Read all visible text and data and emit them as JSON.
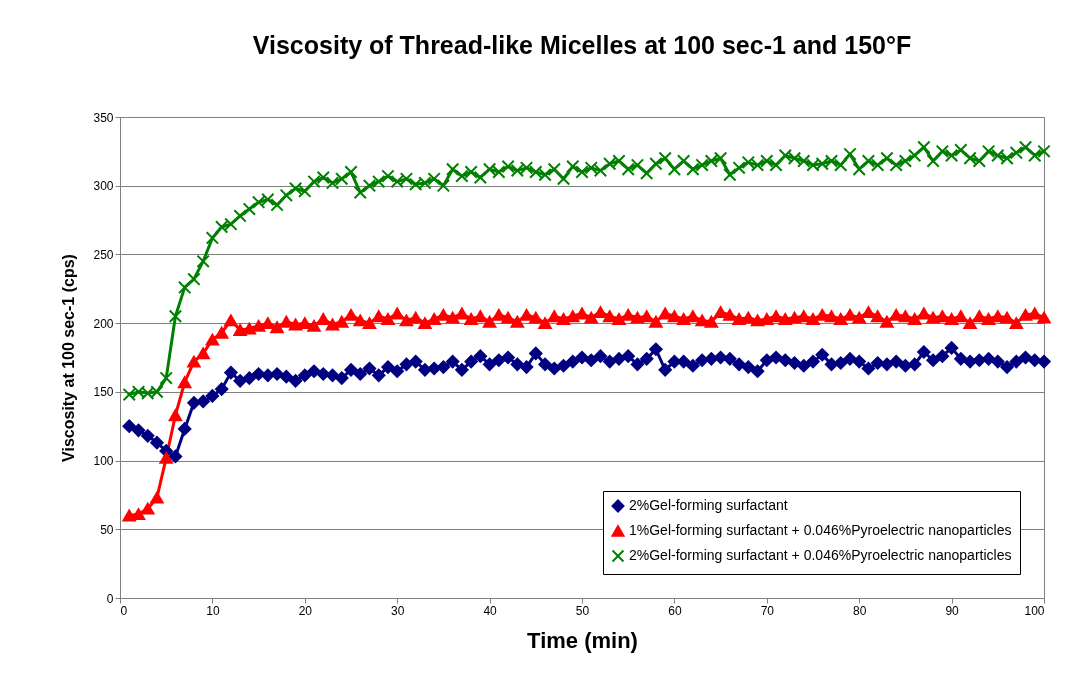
{
  "chart_data": {
    "type": "line",
    "title": "Viscosity of Thread-like Micelles at 100 sec-1 and 150°F",
    "xlabel": "Time (min)",
    "ylabel": "Viscosity at 100 sec-1 (cps)",
    "x": [
      1,
      2,
      3,
      4,
      5,
      6,
      7,
      8,
      9,
      10,
      11,
      12,
      13,
      14,
      15,
      16,
      17,
      18,
      19,
      20,
      21,
      22,
      23,
      24,
      25,
      26,
      27,
      28,
      29,
      30,
      31,
      32,
      33,
      34,
      35,
      36,
      37,
      38,
      39,
      40,
      41,
      42,
      43,
      44,
      45,
      46,
      47,
      48,
      49,
      50,
      51,
      52,
      53,
      54,
      55,
      56,
      57,
      58,
      59,
      60,
      61,
      62,
      63,
      64,
      65,
      66,
      67,
      68,
      69,
      70,
      71,
      72,
      73,
      74,
      75,
      76,
      77,
      78,
      79,
      80,
      81,
      82,
      83,
      84,
      85,
      86,
      87,
      88,
      89,
      90,
      91,
      92,
      93,
      94,
      95,
      96,
      97,
      98,
      99,
      100
    ],
    "series": [
      {
        "name": "2%Gel-forming surfactant",
        "color": "#000080",
        "marker": "diamond",
        "values": [
          125,
          122,
          118,
          113,
          107,
          103,
          123,
          142,
          143,
          147,
          152,
          164,
          158,
          160,
          163,
          162,
          163,
          161,
          158,
          162,
          165,
          163,
          162,
          160,
          166,
          163,
          167,
          162,
          168,
          165,
          170,
          172,
          166,
          167,
          168,
          172,
          166,
          172,
          176,
          170,
          173,
          175,
          170,
          168,
          178,
          170,
          167,
          169,
          172,
          175,
          173,
          176,
          172,
          174,
          176,
          170,
          174,
          181,
          166,
          172,
          172,
          169,
          173,
          174,
          175,
          174,
          170,
          168,
          165,
          173,
          175,
          173,
          171,
          169,
          172,
          177,
          170,
          171,
          174,
          172,
          167,
          171,
          170,
          172,
          169,
          170,
          179,
          173,
          176,
          182,
          174,
          172,
          173,
          174,
          172,
          168,
          172,
          175,
          173,
          172
        ]
      },
      {
        "name": "1%Gel-forming surfactant + 0.046%Pyroelectric nanoparticles",
        "color": "#ff0000",
        "marker": "triangle",
        "values": [
          60,
          61,
          65,
          73,
          102,
          133,
          157,
          172,
          178,
          188,
          193,
          202,
          195,
          196,
          198,
          200,
          197,
          201,
          199,
          200,
          198,
          203,
          199,
          201,
          206,
          202,
          200,
          205,
          203,
          207,
          202,
          204,
          200,
          203,
          206,
          204,
          207,
          203,
          205,
          201,
          206,
          204,
          201,
          206,
          204,
          200,
          205,
          203,
          205,
          207,
          204,
          208,
          205,
          203,
          206,
          204,
          205,
          201,
          207,
          205,
          203,
          205,
          202,
          201,
          208,
          206,
          203,
          204,
          202,
          203,
          205,
          203,
          204,
          205,
          203,
          206,
          205,
          203,
          206,
          204,
          208,
          205,
          201,
          206,
          205,
          203,
          207,
          204,
          205,
          203,
          205,
          200,
          205,
          203,
          205,
          204,
          200,
          206,
          207,
          204
        ]
      },
      {
        "name": "2%Gel-forming surfactant + 0.046%Pyroelectric nanoparticles",
        "color": "#008000",
        "marker": "cross",
        "values": [
          148,
          150,
          149,
          150,
          160,
          205,
          226,
          232,
          245,
          262,
          270,
          272,
          278,
          283,
          288,
          290,
          286,
          293,
          298,
          296,
          303,
          306,
          302,
          305,
          310,
          295,
          300,
          303,
          307,
          303,
          305,
          301,
          302,
          305,
          300,
          312,
          307,
          310,
          306,
          312,
          310,
          314,
          311,
          313,
          310,
          308,
          312,
          305,
          314,
          310,
          313,
          311,
          316,
          318,
          312,
          315,
          309,
          316,
          320,
          312,
          318,
          312,
          315,
          318,
          320,
          308,
          313,
          317,
          315,
          318,
          315,
          322,
          320,
          318,
          315,
          316,
          318,
          315,
          323,
          312,
          318,
          315,
          320,
          315,
          318,
          322,
          328,
          318,
          325,
          322,
          326,
          320,
          318,
          325,
          322,
          320,
          324,
          328,
          322,
          325
        ]
      }
    ],
    "xlim": [
      0,
      100
    ],
    "xticks": [
      0,
      10,
      20,
      30,
      40,
      50,
      60,
      70,
      80,
      90,
      100
    ],
    "ylim": [
      0,
      350
    ],
    "yticks": [
      0,
      50,
      100,
      150,
      200,
      250,
      300,
      350
    ],
    "grid": "y",
    "legend": "bottom right",
    "line_style": "solid"
  }
}
